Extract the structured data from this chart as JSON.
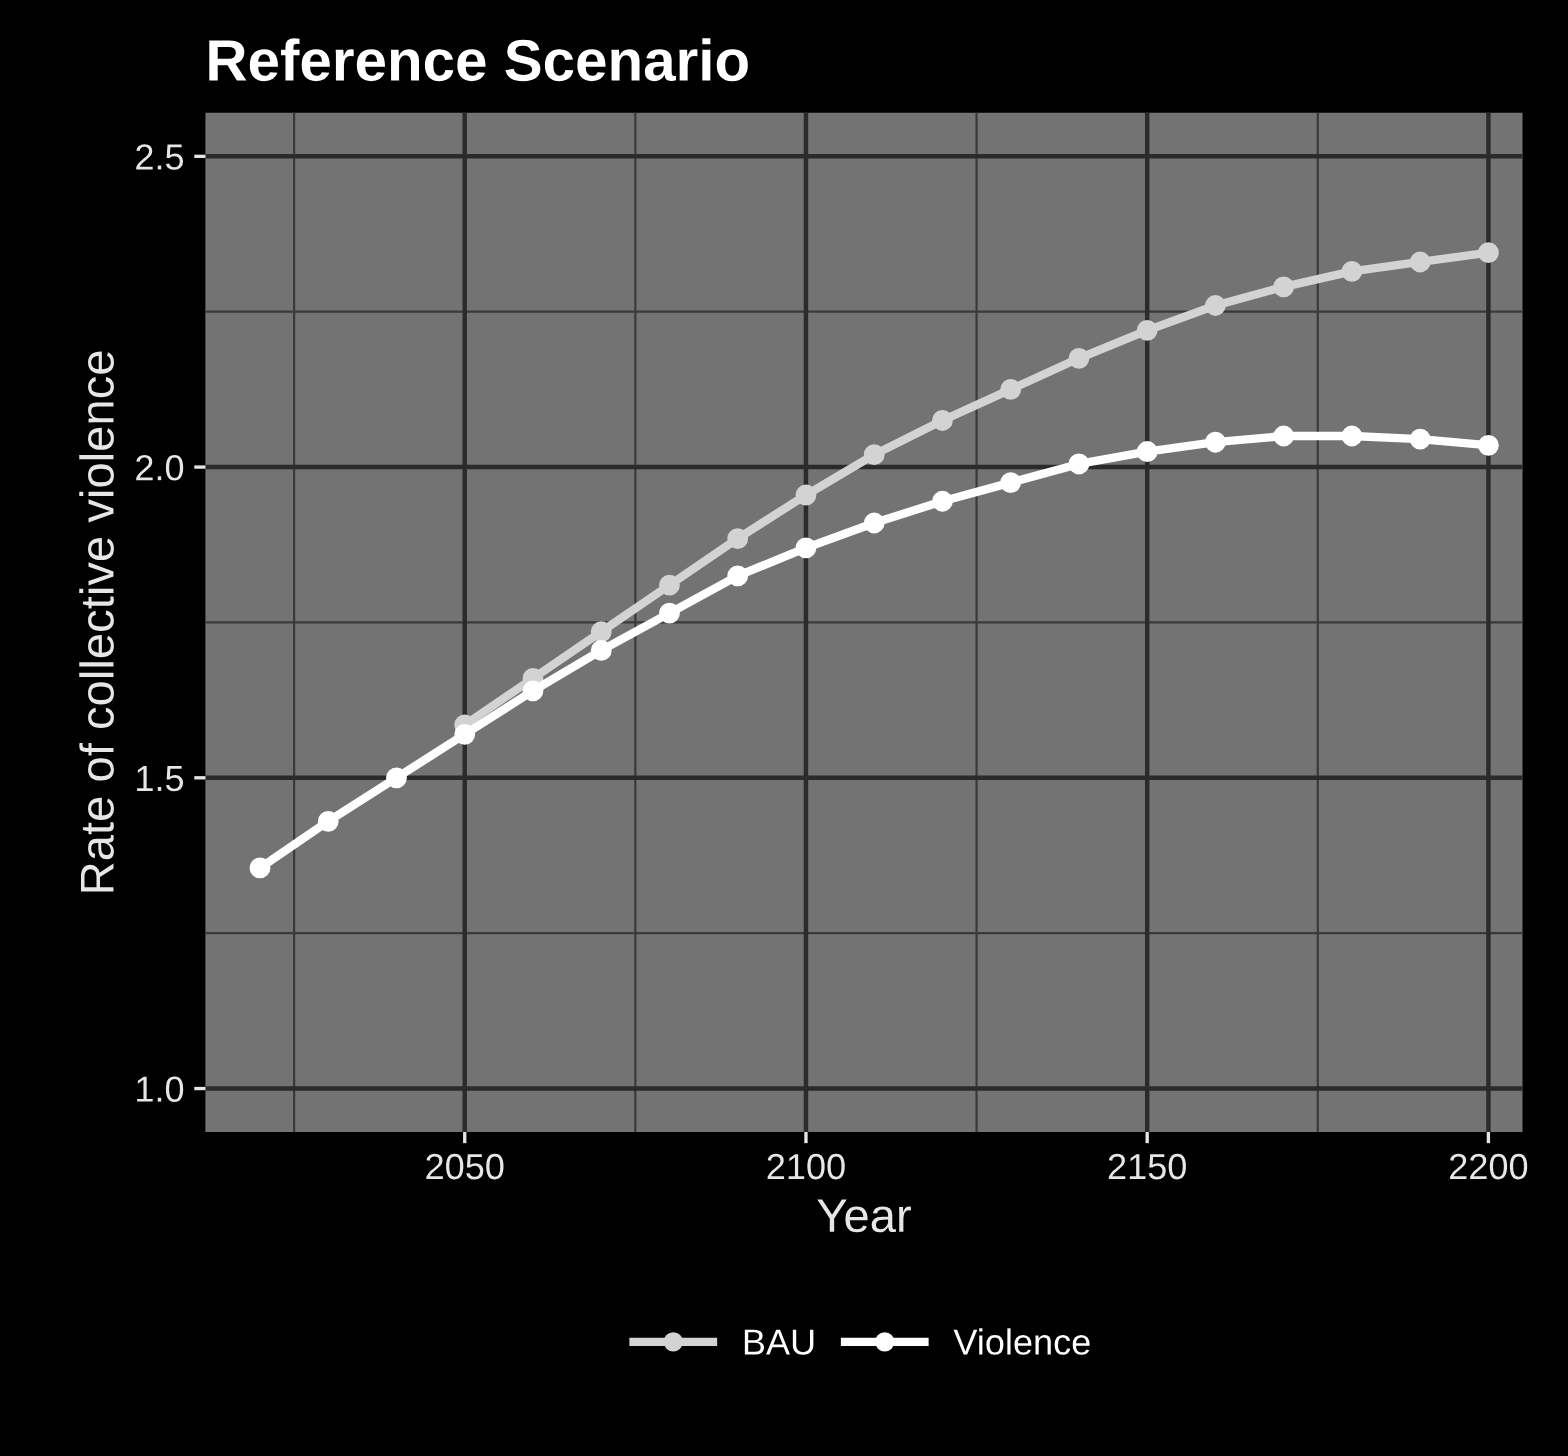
{
  "chart_data": {
    "type": "line",
    "title": "Reference Scenario",
    "xlabel": "Year",
    "ylabel": "Rate of collective violence",
    "x": [
      2020,
      2030,
      2040,
      2050,
      2060,
      2070,
      2080,
      2090,
      2100,
      2110,
      2120,
      2130,
      2140,
      2150,
      2160,
      2170,
      2180,
      2190,
      2200
    ],
    "series": [
      {
        "name": "BAU",
        "color": "#d3d3d3",
        "values": [
          null,
          null,
          null,
          1.585,
          1.66,
          1.735,
          1.81,
          1.885,
          1.955,
          2.02,
          2.075,
          2.125,
          2.175,
          2.22,
          2.26,
          2.29,
          2.315,
          2.33,
          2.345
        ]
      },
      {
        "name": "Violence",
        "color": "#ffffff",
        "values": [
          1.355,
          1.43,
          1.5,
          1.57,
          1.64,
          1.705,
          1.765,
          1.825,
          1.87,
          1.91,
          1.945,
          1.975,
          2.005,
          2.025,
          2.04,
          2.05,
          2.05,
          2.045,
          2.035
        ]
      }
    ],
    "xlim": [
      2012,
      2205
    ],
    "xticks": [
      2050,
      2100,
      2150,
      2200
    ],
    "ylim": [
      0.93,
      2.57
    ],
    "yticks": [
      {
        "value": 1,
        "label": "1.0"
      },
      {
        "value": 1.5,
        "label": "1.5"
      },
      {
        "value": 2,
        "label": "2.0"
      },
      {
        "value": 2.5,
        "label": "2.5"
      }
    ],
    "grid": true,
    "legend": "bottom",
    "marker": "circle",
    "line_style": "solid"
  }
}
